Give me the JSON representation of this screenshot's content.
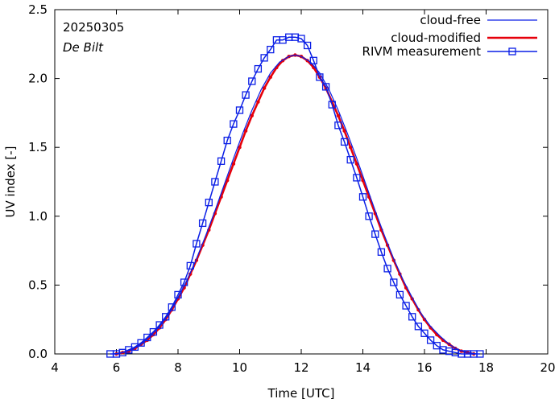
{
  "chart_data": {
    "type": "line",
    "title": "",
    "xlabel": "Time  [UTC]",
    "ylabel": "UV index  [-]",
    "xlim": [
      4,
      20
    ],
    "ylim": [
      0,
      2.5
    ],
    "xticks": [
      4,
      6,
      8,
      10,
      12,
      14,
      16,
      18,
      20
    ],
    "yticks": [
      0.0,
      0.5,
      1.0,
      1.5,
      2.0,
      2.5
    ],
    "xtick_labels": [
      "4",
      "6",
      "8",
      "10",
      "12",
      "14",
      "16",
      "18",
      "20"
    ],
    "ytick_labels": [
      "0.0",
      "0.5",
      "1.0",
      "1.5",
      "2.0",
      "2.5"
    ],
    "grid": false,
    "legend_position": "top-right",
    "annotations": [
      "20250305",
      "De Bilt"
    ],
    "colors": {
      "blue": "#0a1ee6",
      "red": "#e6000a"
    },
    "series": [
      {
        "name": "cloud-free",
        "style": "line",
        "x": [
          5.9,
          6.2,
          6.5,
          6.8,
          7.1,
          7.4,
          7.7,
          8.0,
          8.3,
          8.6,
          8.9,
          9.2,
          9.5,
          9.8,
          10.1,
          10.4,
          10.7,
          11.0,
          11.3,
          11.6,
          11.8,
          12.0,
          12.3,
          12.6,
          12.9,
          13.2,
          13.5,
          13.8,
          14.1,
          14.4,
          14.7,
          15.0,
          15.3,
          15.6,
          15.9,
          16.2,
          16.5,
          16.8,
          17.1,
          17.4,
          17.7
        ],
        "y": [
          0.0,
          0.01,
          0.03,
          0.07,
          0.13,
          0.2,
          0.29,
          0.41,
          0.54,
          0.69,
          0.86,
          1.04,
          1.23,
          1.42,
          1.6,
          1.77,
          1.92,
          2.04,
          2.12,
          2.16,
          2.17,
          2.16,
          2.12,
          2.04,
          1.92,
          1.77,
          1.6,
          1.42,
          1.23,
          1.04,
          0.86,
          0.69,
          0.54,
          0.41,
          0.29,
          0.2,
          0.13,
          0.07,
          0.03,
          0.01,
          0.0
        ]
      },
      {
        "name": "cloud-modified",
        "style": "line-dots",
        "x": [
          6.0,
          6.2,
          6.4,
          6.6,
          6.8,
          7.0,
          7.2,
          7.4,
          7.6,
          7.8,
          8.0,
          8.2,
          8.4,
          8.6,
          8.8,
          9.0,
          9.2,
          9.4,
          9.6,
          9.8,
          10.0,
          10.2,
          10.4,
          10.6,
          10.8,
          11.0,
          11.2,
          11.4,
          11.6,
          11.8,
          12.0,
          12.2,
          12.4,
          12.6,
          12.8,
          13.0,
          13.2,
          13.4,
          13.6,
          13.8,
          14.0,
          14.2,
          14.4,
          14.6,
          14.8,
          15.0,
          15.2,
          15.4,
          15.6,
          15.8,
          16.0,
          16.2,
          16.4,
          16.6,
          16.8,
          17.0,
          17.2,
          17.4,
          17.6
        ],
        "y": [
          0.0,
          0.01,
          0.02,
          0.04,
          0.07,
          0.1,
          0.14,
          0.19,
          0.25,
          0.32,
          0.4,
          0.48,
          0.58,
          0.68,
          0.79,
          0.9,
          1.02,
          1.14,
          1.26,
          1.38,
          1.5,
          1.62,
          1.73,
          1.83,
          1.93,
          2.01,
          2.08,
          2.13,
          2.16,
          2.17,
          2.16,
          2.13,
          2.08,
          2.01,
          1.93,
          1.83,
          1.73,
          1.62,
          1.5,
          1.38,
          1.26,
          1.14,
          1.02,
          0.9,
          0.79,
          0.68,
          0.58,
          0.48,
          0.4,
          0.32,
          0.25,
          0.19,
          0.14,
          0.1,
          0.07,
          0.04,
          0.02,
          0.01,
          0.0
        ]
      },
      {
        "name": "RIVM measurement",
        "style": "line-squares",
        "x": [
          5.8,
          6.0,
          6.2,
          6.4,
          6.6,
          6.8,
          7.0,
          7.2,
          7.4,
          7.6,
          7.8,
          8.0,
          8.2,
          8.4,
          8.6,
          8.8,
          9.0,
          9.2,
          9.4,
          9.6,
          9.8,
          10.0,
          10.2,
          10.4,
          10.6,
          10.8,
          11.0,
          11.2,
          11.4,
          11.6,
          11.8,
          12.0,
          12.2,
          12.4,
          12.6,
          12.8,
          13.0,
          13.2,
          13.4,
          13.6,
          13.8,
          14.0,
          14.2,
          14.4,
          14.6,
          14.8,
          15.0,
          15.2,
          15.4,
          15.6,
          15.8,
          16.0,
          16.2,
          16.4,
          16.6,
          16.8,
          17.0,
          17.2,
          17.4,
          17.6,
          17.8
        ],
        "y": [
          0.0,
          0.0,
          0.01,
          0.03,
          0.05,
          0.08,
          0.12,
          0.16,
          0.21,
          0.27,
          0.34,
          0.43,
          0.52,
          0.64,
          0.8,
          0.95,
          1.1,
          1.25,
          1.4,
          1.55,
          1.67,
          1.77,
          1.88,
          1.98,
          2.07,
          2.15,
          2.21,
          2.28,
          2.28,
          2.3,
          2.3,
          2.29,
          2.24,
          2.13,
          2.01,
          1.94,
          1.81,
          1.66,
          1.54,
          1.41,
          1.28,
          1.14,
          1.0,
          0.87,
          0.74,
          0.62,
          0.52,
          0.43,
          0.35,
          0.27,
          0.2,
          0.15,
          0.1,
          0.06,
          0.03,
          0.02,
          0.01,
          0.0,
          0.0,
          0.0,
          0.0
        ]
      }
    ]
  }
}
